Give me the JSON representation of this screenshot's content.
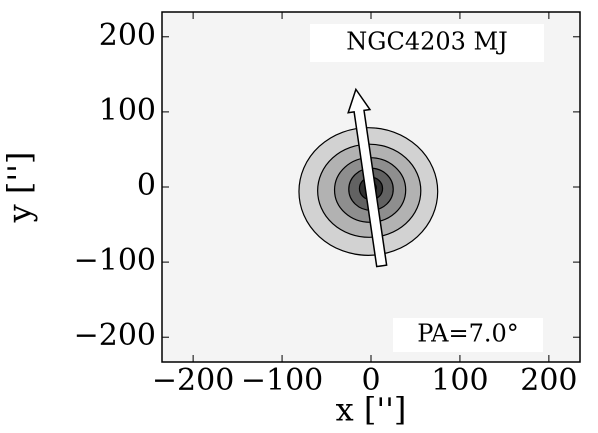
{
  "chart_data": {
    "type": "contour",
    "xlabel": "x ['']",
    "ylabel": "y ['']",
    "xlim": [
      -235,
      235
    ],
    "ylim": [
      -233,
      233
    ],
    "xticks": [
      {
        "value": -200,
        "label": "−200"
      },
      {
        "value": -100,
        "label": "−100"
      },
      0,
      100,
      200
    ],
    "yticks": [
      {
        "value": -200,
        "label": "−200"
      },
      {
        "value": -100,
        "label": "−100"
      },
      0,
      100,
      200
    ],
    "contours": [
      {
        "cx": -3,
        "cy": -6,
        "rx": 78,
        "ry": 85,
        "color": "#d2d2d2"
      },
      {
        "cx": -2,
        "cy": -5,
        "rx": 58,
        "ry": 62,
        "color": "#b2b2b2"
      },
      {
        "cx": -1,
        "cy": -4,
        "rx": 40,
        "ry": 43,
        "color": "#8e8e8e"
      },
      {
        "cx": 0,
        "cy": -3,
        "rx": 25,
        "ry": 28,
        "color": "#626262"
      },
      {
        "cx": 0,
        "cy": -2,
        "rx": 13,
        "ry": 15,
        "color": "#303030"
      },
      {
        "cx": 0,
        "cy": -1,
        "rx": 6,
        "ry": 7,
        "color": "#111111"
      }
    ],
    "arrow": {
      "x": [
        12,
        -17
      ],
      "y": [
        -105,
        130
      ]
    },
    "annotations": [
      "NGC4203 MJ",
      "PA=7.0°"
    ]
  }
}
